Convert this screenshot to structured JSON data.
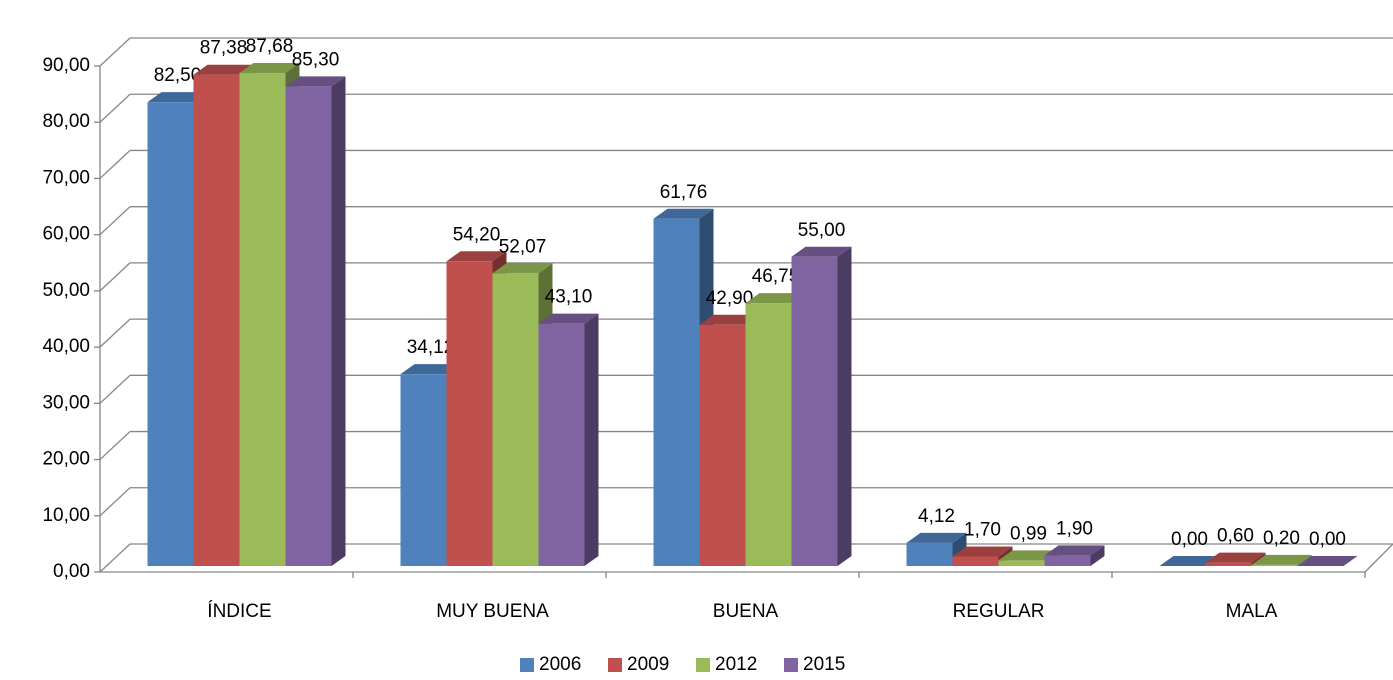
{
  "chart_data": {
    "type": "bar3d",
    "categories": [
      "ÍNDICE",
      "MUY BUENA",
      "BUENA",
      "REGULAR",
      "MALA"
    ],
    "series": [
      {
        "name": "2006",
        "color": "#4f81bd",
        "values": [
          82.5,
          34.12,
          61.76,
          4.12,
          0.0
        ],
        "value_labels": [
          "82,50",
          "34,12",
          "61,76",
          "4,12",
          "0,00"
        ]
      },
      {
        "name": "2009",
        "color": "#c0504d",
        "values": [
          87.38,
          54.2,
          42.9,
          1.7,
          0.6
        ],
        "value_labels": [
          "87,38",
          "54,20",
          "42,90",
          "1,70",
          "0,60"
        ]
      },
      {
        "name": "2012",
        "color": "#9bbb59",
        "values": [
          87.68,
          52.07,
          46.75,
          0.99,
          0.2
        ],
        "value_labels": [
          "87,68",
          "52,07",
          "46,75",
          "0,99",
          "0,20"
        ]
      },
      {
        "name": "2015",
        "color": "#8064a2",
        "values": [
          85.3,
          43.1,
          55.0,
          1.9,
          0.0
        ],
        "value_labels": [
          "85,30",
          "43,10",
          "55,00",
          "1,90",
          "0,00"
        ]
      }
    ],
    "ylim": [
      0,
      90
    ],
    "yticks": [
      {
        "value": 0,
        "label": "0,00"
      },
      {
        "value": 10,
        "label": "10,00"
      },
      {
        "value": 20,
        "label": "20,00"
      },
      {
        "value": 30,
        "label": "30,00"
      },
      {
        "value": 40,
        "label": "40,00"
      },
      {
        "value": 50,
        "label": "50,00"
      },
      {
        "value": 60,
        "label": "60,00"
      },
      {
        "value": 70,
        "label": "70,00"
      },
      {
        "value": 80,
        "label": "80,00"
      },
      {
        "value": 90,
        "label": "90,00"
      }
    ],
    "grid": true,
    "legend": "bottom"
  }
}
